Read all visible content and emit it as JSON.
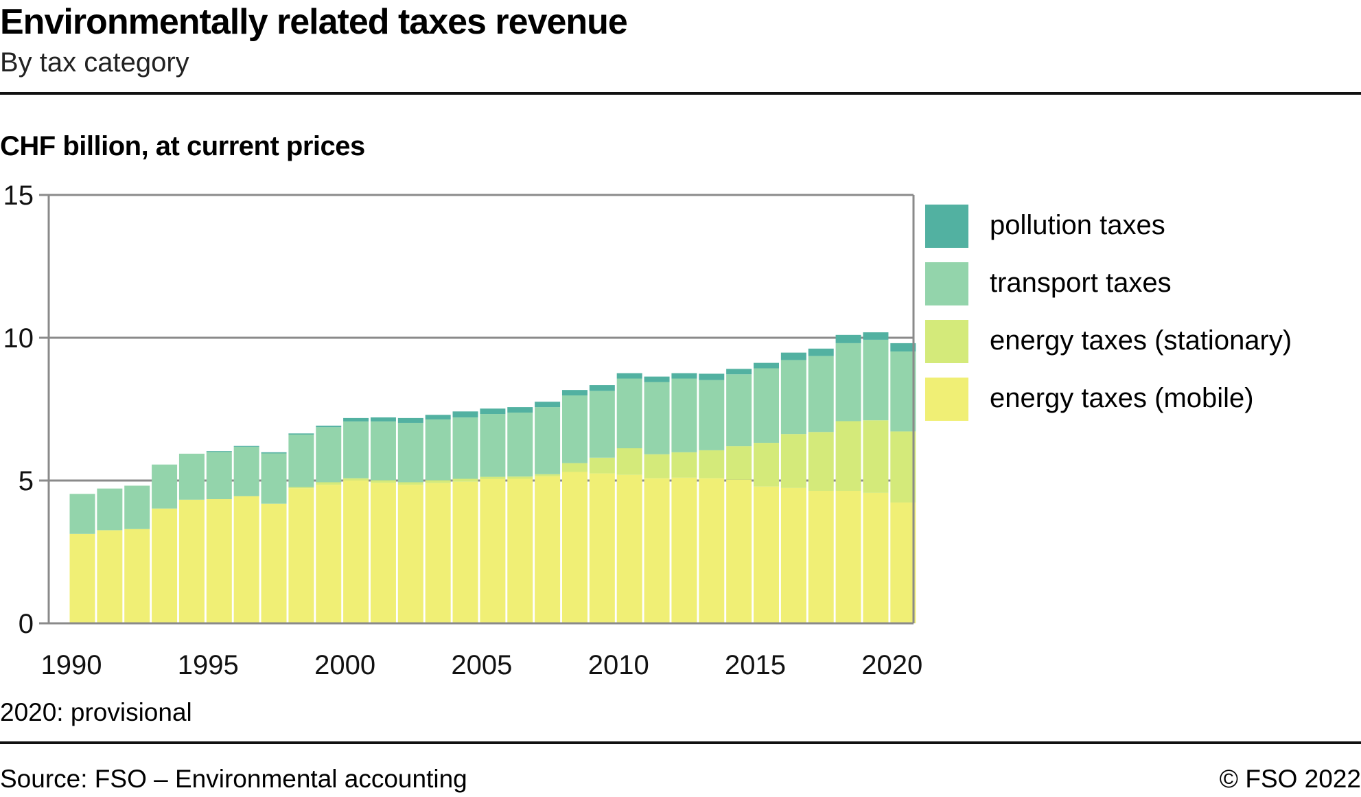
{
  "header": {
    "title": "Environmentally related taxes revenue",
    "subtitle": "By tax category",
    "unit_label": "CHF billion, at current prices"
  },
  "footer": {
    "note": "2020: provisional",
    "source": "Source: FSO – Environmental accounting",
    "copyright": "© FSO 2022"
  },
  "colors": {
    "pollution": "#52B1A1",
    "transport": "#93D4AB",
    "stationary": "#D4EA7A",
    "mobile": "#F0EF75",
    "axis": "#8a8a8a"
  },
  "legend": [
    {
      "label": "pollution taxes",
      "color": "#52B1A1"
    },
    {
      "label": "transport taxes",
      "color": "#93D4AB"
    },
    {
      "label": "energy taxes (stationary)",
      "color": "#D4EA7A"
    },
    {
      "label": "energy taxes (mobile)",
      "color": "#F0EF75"
    }
  ],
  "chart_data": {
    "type": "bar",
    "stacked": true,
    "title": "Environmentally related taxes revenue",
    "subtitle": "By tax category",
    "xlabel": "",
    "ylabel": "CHF billion, at current prices",
    "ylim": [
      0,
      15
    ],
    "yticks": [
      0,
      5,
      10,
      15
    ],
    "xtick_labels": [
      "1990",
      "1995",
      "2000",
      "2005",
      "2010",
      "2015",
      "2020"
    ],
    "grid": true,
    "legend_position": "right",
    "categories": [
      "1990",
      "1991",
      "1992",
      "1993",
      "1994",
      "1995",
      "1996",
      "1997",
      "1998",
      "1999",
      "2000",
      "2001",
      "2002",
      "2003",
      "2004",
      "2005",
      "2006",
      "2007",
      "2008",
      "2009",
      "2010",
      "2011",
      "2012",
      "2013",
      "2014",
      "2015",
      "2016",
      "2017",
      "2018",
      "2019",
      "2020"
    ],
    "series": [
      {
        "name": "energy taxes (mobile)",
        "color": "#F0EF75",
        "values": [
          3.13,
          3.26,
          3.3,
          4.02,
          4.33,
          4.35,
          4.45,
          4.19,
          4.73,
          4.85,
          5.01,
          4.92,
          4.85,
          4.91,
          4.96,
          5.05,
          5.06,
          5.15,
          5.3,
          5.25,
          5.2,
          5.08,
          5.1,
          5.08,
          5.03,
          4.79,
          4.74,
          4.64,
          4.64,
          4.57,
          4.23
        ]
      },
      {
        "name": "energy taxes (stationary)",
        "color": "#D4EA7A",
        "values": [
          0.0,
          0.0,
          0.0,
          0.0,
          0.0,
          0.0,
          0.0,
          0.0,
          0.04,
          0.09,
          0.07,
          0.09,
          0.09,
          0.1,
          0.1,
          0.08,
          0.08,
          0.07,
          0.31,
          0.55,
          0.93,
          0.84,
          0.89,
          0.98,
          1.17,
          1.53,
          1.89,
          2.06,
          2.44,
          2.54,
          2.49
        ]
      },
      {
        "name": "transport taxes",
        "color": "#93D4AB",
        "values": [
          1.4,
          1.46,
          1.52,
          1.54,
          1.61,
          1.65,
          1.73,
          1.76,
          1.84,
          1.93,
          1.99,
          2.06,
          2.08,
          2.13,
          2.15,
          2.2,
          2.24,
          2.35,
          2.37,
          2.34,
          2.44,
          2.53,
          2.58,
          2.46,
          2.52,
          2.61,
          2.59,
          2.66,
          2.73,
          2.82,
          2.8
        ]
      },
      {
        "name": "pollution taxes",
        "color": "#52B1A1",
        "values": [
          0.0,
          0.0,
          0.0,
          0.0,
          0.0,
          0.03,
          0.03,
          0.04,
          0.04,
          0.05,
          0.12,
          0.14,
          0.17,
          0.16,
          0.21,
          0.19,
          0.19,
          0.19,
          0.19,
          0.2,
          0.19,
          0.19,
          0.19,
          0.22,
          0.19,
          0.19,
          0.26,
          0.26,
          0.29,
          0.26,
          0.29
        ]
      }
    ]
  }
}
